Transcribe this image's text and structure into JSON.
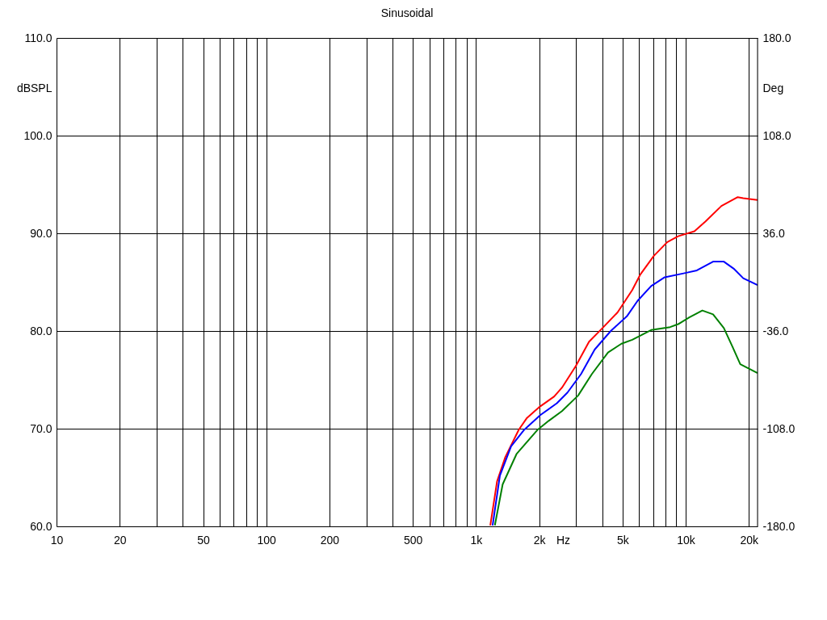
{
  "chart_data": {
    "type": "line",
    "title": "Sinusoidal",
    "xlabel": "Hz",
    "ylabel": "dBSPL",
    "y2label": "Deg",
    "log": "x",
    "grid": true,
    "xlim": [
      10,
      22000
    ],
    "xticks": [
      10,
      20,
      {
        "value": 30,
        "label": null
      },
      {
        "value": 40,
        "label": null
      },
      50,
      {
        "value": 60,
        "label": null
      },
      {
        "value": 70,
        "label": null
      },
      {
        "value": 80,
        "label": null
      },
      {
        "value": 90,
        "label": null
      },
      100,
      200,
      {
        "value": 300,
        "label": null
      },
      {
        "value": 400,
        "label": null
      },
      500,
      {
        "value": 600,
        "label": null
      },
      {
        "value": 700,
        "label": null
      },
      {
        "value": 800,
        "label": null
      },
      {
        "value": 900,
        "label": null
      },
      {
        "value": 1000,
        "label": "1k"
      },
      {
        "value": 2000,
        "label": "2k"
      },
      {
        "value": 3000,
        "label": null
      },
      {
        "value": 4000,
        "label": null
      },
      {
        "value": 5000,
        "label": "5k"
      },
      {
        "value": 6000,
        "label": null
      },
      {
        "value": 7000,
        "label": null
      },
      {
        "value": 8000,
        "label": null
      },
      {
        "value": 9000,
        "label": null
      },
      {
        "value": 10000,
        "label": "10k"
      },
      {
        "value": 20000,
        "label": "20k"
      }
    ],
    "ylim": [
      60,
      110
    ],
    "yticks": [
      {
        "value": 60,
        "label": "60.0"
      },
      {
        "value": 70,
        "label": "70.0"
      },
      {
        "value": 80,
        "label": "80.0"
      },
      {
        "value": 90,
        "label": "90.0"
      },
      {
        "value": 100,
        "label": "100.0"
      },
      {
        "value": 110,
        "label": "110.0"
      }
    ],
    "y2lim": [
      -180,
      180
    ],
    "y2ticks": [
      {
        "value": -180,
        "label": "-180.0"
      },
      {
        "value": -108,
        "label": "-108.0"
      },
      {
        "value": -36,
        "label": "-36.0"
      },
      {
        "value": 36,
        "label": "36.0"
      },
      {
        "value": 108,
        "label": "108.0"
      },
      {
        "value": 180,
        "label": "180.0"
      }
    ],
    "series": [
      {
        "color": "#ff0000",
        "x": [
          1170,
          1260,
          1380,
          1600,
          1750,
          2000,
          2360,
          2570,
          2990,
          3460,
          4010,
          4730,
          5560,
          6080,
          7050,
          8170,
          9200,
          11000,
          12400,
          14800,
          17700,
          18800,
          22000
        ],
        "values": [
          60.1,
          64.6,
          67.1,
          69.9,
          71.1,
          72.2,
          73.3,
          74.2,
          76.4,
          78.9,
          80.3,
          81.9,
          84.2,
          85.8,
          87.7,
          89.1,
          89.7,
          90.2,
          91.2,
          92.8,
          93.7,
          93.6,
          93.4
        ]
      },
      {
        "color": "#0000ff",
        "x": [
          1200,
          1300,
          1470,
          1700,
          2030,
          2430,
          2730,
          3170,
          3680,
          4390,
          5240,
          5900,
          6840,
          7940,
          9770,
          11300,
          13500,
          15200,
          16900,
          18800,
          22000
        ],
        "values": [
          60.1,
          65.2,
          68.2,
          69.9,
          71.4,
          72.6,
          73.7,
          75.6,
          78.1,
          80.0,
          81.5,
          83.1,
          84.6,
          85.5,
          85.9,
          86.2,
          87.1,
          87.1,
          86.4,
          85.4,
          84.7
        ]
      },
      {
        "color": "#008000",
        "x": [
          1230,
          1340,
          1560,
          1970,
          2220,
          2570,
          3070,
          3570,
          4260,
          4940,
          5560,
          6840,
          8430,
          9200,
          10400,
          12000,
          13500,
          15200,
          16700,
          18200,
          22000
        ],
        "values": [
          60.1,
          64.3,
          67.4,
          69.9,
          70.8,
          71.8,
          73.4,
          75.6,
          77.8,
          78.7,
          79.1,
          80.1,
          80.4,
          80.7,
          81.4,
          82.1,
          81.7,
          80.3,
          78.4,
          76.6,
          75.7
        ]
      }
    ]
  }
}
